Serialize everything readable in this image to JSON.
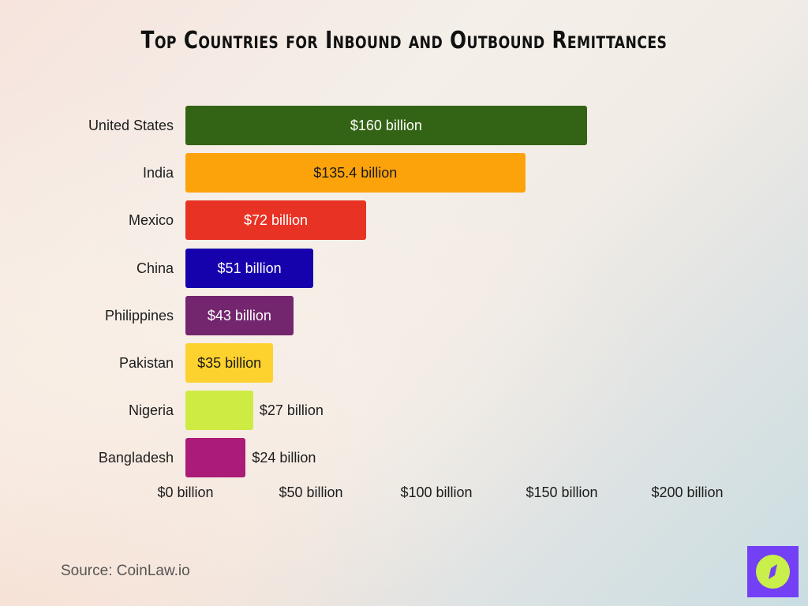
{
  "title": "Top Countries for Inbound and Outbound Remittances",
  "source": "Source: CoinLaw.io",
  "logo": {
    "icon": "compass-icon",
    "bg_color": "#7440f5",
    "fg_color": "#c9ef4a"
  },
  "axis": {
    "ticks": [
      "$0 billion",
      "$50 billion",
      "$100 billion",
      "$150 billion",
      "$200 billion"
    ]
  },
  "bars": [
    {
      "country": "United States",
      "label": "$160 billion",
      "value": 160,
      "color": "#336314",
      "text_color": "#ffffff",
      "inside": true
    },
    {
      "country": "India",
      "label": "$135.4 billion",
      "value": 135.4,
      "color": "#fca30b",
      "text_color": "#1c1c1c",
      "inside": true
    },
    {
      "country": "Mexico",
      "label": "$72 billion",
      "value": 72,
      "color": "#e83224",
      "text_color": "#ffffff",
      "inside": true
    },
    {
      "country": "China",
      "label": "$51 billion",
      "value": 51,
      "color": "#1602ad",
      "text_color": "#ffffff",
      "inside": true
    },
    {
      "country": "Philippines",
      "label": "$43 billion",
      "value": 43,
      "color": "#73266e",
      "text_color": "#ffffff",
      "inside": true
    },
    {
      "country": "Pakistan",
      "label": "$35 billion",
      "value": 35,
      "color": "#fed22e",
      "text_color": "#1c1c1c",
      "inside": true
    },
    {
      "country": "Nigeria",
      "label": "$27 billion",
      "value": 27,
      "color": "#cdeb43",
      "text_color": "#1c1c1c",
      "inside": false
    },
    {
      "country": "Bangladesh",
      "label": "$24 billion",
      "value": 24,
      "color": "#ab1c78",
      "text_color": "#1c1c1c",
      "inside": false
    }
  ],
  "chart_data": {
    "type": "bar",
    "orientation": "horizontal",
    "title": "Top Countries for Inbound and Outbound Remittances",
    "categories": [
      "United States",
      "India",
      "Mexico",
      "China",
      "Philippines",
      "Pakistan",
      "Nigeria",
      "Bangladesh"
    ],
    "values": [
      160,
      135.4,
      72,
      51,
      43,
      35,
      27,
      24
    ],
    "data_labels": [
      "$160 billion",
      "$135.4 billion",
      "$72 billion",
      "$51 billion",
      "$43 billion",
      "$35 billion",
      "$27 billion",
      "$24 billion"
    ],
    "colors": [
      "#336314",
      "#fca30b",
      "#e83224",
      "#1602ad",
      "#73266e",
      "#fed22e",
      "#cdeb43",
      "#ab1c78"
    ],
    "xlabel": "",
    "ylabel": "",
    "xlim": [
      0,
      200
    ],
    "x_ticks": [
      "$0 billion",
      "$50 billion",
      "$100 billion",
      "$150 billion",
      "$200 billion"
    ],
    "grid": false,
    "legend": null,
    "annotation": "Source: CoinLaw.io"
  }
}
